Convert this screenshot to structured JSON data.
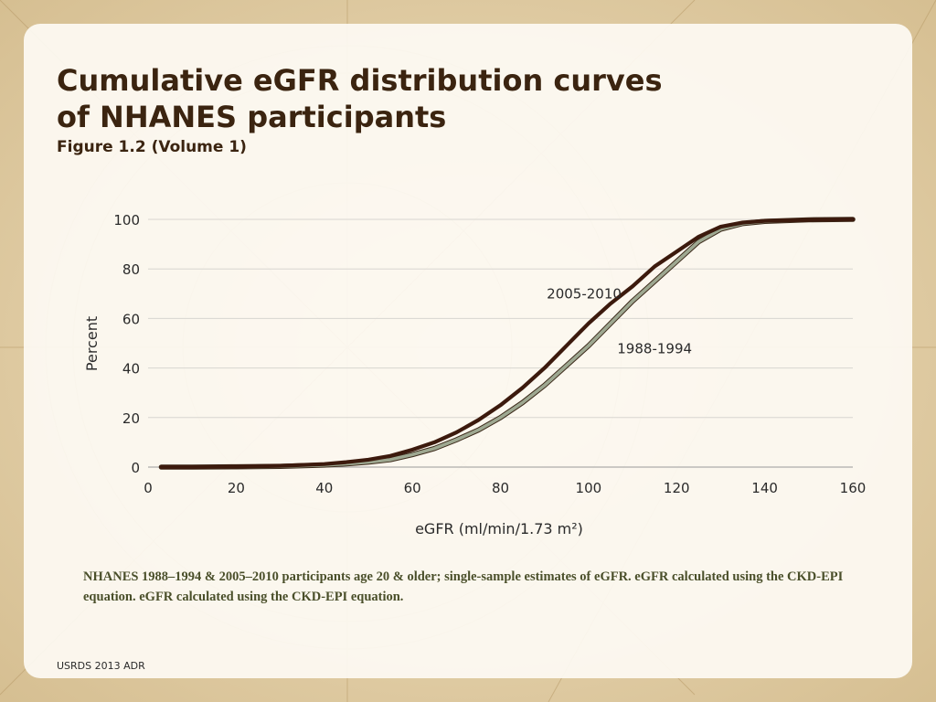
{
  "slide": {
    "title_line1": "Cumulative eGFR distribution curves",
    "title_line2": "of NHANES participants",
    "subtitle": "Figure 1.2 (Volume 1)",
    "note": "NHANES 1988–1994 & 2005–2010 participants age 20 & older; single-sample estimates of eGFR. eGFR calculated using the CKD-EPI equation. eGFR calculated using the CKD-EPI equation.",
    "footer": "USRDS 2013 ADR"
  },
  "colors": {
    "background": "#e4d2ae",
    "series_2005_2010": "#3c1a0d",
    "series_1988_1994": "#9ea891",
    "series_1988_1994_edge": "#3c2a1a",
    "gridline": "#d8d6d0",
    "title": "#3b2410",
    "note": "#4a4f2a"
  },
  "chart_data": {
    "type": "line",
    "title": "",
    "xlabel": "eGFR (ml/min/1.73 m²)",
    "ylabel": "Percent",
    "xlim": [
      0,
      160
    ],
    "ylim": [
      0,
      100
    ],
    "x_ticks": [
      0,
      20,
      40,
      60,
      80,
      100,
      120,
      140,
      160
    ],
    "y_ticks": [
      0,
      20,
      40,
      60,
      80,
      100
    ],
    "grid": true,
    "legend": "inline labels",
    "series": [
      {
        "name": "2005-2010",
        "x": [
          3,
          10,
          20,
          30,
          40,
          45,
          50,
          55,
          60,
          65,
          70,
          75,
          80,
          85,
          90,
          95,
          100,
          105,
          110,
          115,
          120,
          125,
          130,
          135,
          140,
          150,
          160
        ],
        "values": [
          0,
          0,
          0.2,
          0.5,
          1.2,
          2,
          3,
          4.5,
          7,
          10,
          14,
          19,
          25,
          32,
          40,
          49,
          58,
          66,
          73,
          81,
          87,
          93,
          97,
          98.7,
          99.4,
          99.8,
          100
        ]
      },
      {
        "name": "1988-1994",
        "x": [
          3,
          10,
          20,
          30,
          40,
          45,
          50,
          55,
          60,
          65,
          70,
          75,
          80,
          85,
          90,
          95,
          100,
          105,
          110,
          115,
          120,
          125,
          130,
          135,
          140,
          150,
          160
        ],
        "values": [
          0,
          0,
          0.1,
          0.3,
          0.8,
          1.3,
          2,
          3,
          5,
          7.5,
          11,
          15,
          20,
          26,
          33,
          41,
          49,
          58,
          67,
          75,
          83,
          91,
          96,
          98.3,
          99.2,
          99.8,
          100
        ]
      }
    ],
    "annotations": [
      {
        "text": "2005-2010",
        "x": 99,
        "y": 68
      },
      {
        "text": "1988-1994",
        "x": 115,
        "y": 46
      }
    ]
  }
}
